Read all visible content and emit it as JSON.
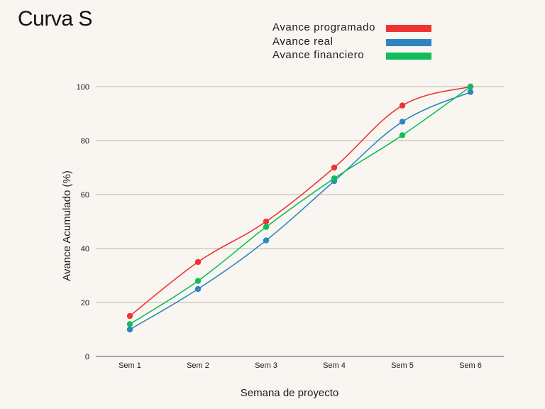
{
  "chart_data": {
    "type": "line",
    "title": "Curva S",
    "xlabel": "Semana de proyecto",
    "ylabel": "Avance Acumulado (%)",
    "categories": [
      "Sem 1",
      "Sem 2",
      "Sem 3",
      "Sem 4",
      "Sem 5",
      "Sem 6"
    ],
    "ylim": [
      0,
      100
    ],
    "yticks": [
      0,
      20,
      40,
      60,
      80,
      100
    ],
    "grid": true,
    "legend_position": "top-right",
    "series": [
      {
        "name": "Avance programado",
        "color": "#ef3333",
        "values": [
          15,
          35,
          50,
          70,
          93,
          100
        ]
      },
      {
        "name": "Avance real",
        "color": "#2e86c1",
        "values": [
          10,
          25,
          43,
          65,
          87,
          98
        ]
      },
      {
        "name": "Avance financiero",
        "color": "#0fbe5a",
        "values": [
          12,
          28,
          48,
          66,
          82,
          100
        ]
      }
    ]
  }
}
